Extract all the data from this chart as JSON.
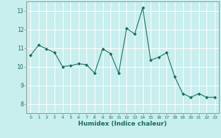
{
  "x": [
    0,
    1,
    2,
    3,
    4,
    5,
    6,
    7,
    8,
    9,
    10,
    11,
    12,
    13,
    14,
    15,
    16,
    17,
    18,
    19,
    20,
    21,
    22,
    23
  ],
  "y": [
    10.6,
    11.15,
    10.95,
    10.75,
    10.0,
    10.05,
    10.15,
    10.1,
    9.65,
    10.95,
    10.7,
    9.65,
    12.05,
    11.75,
    13.15,
    10.35,
    10.5,
    10.75,
    9.45,
    8.55,
    8.35,
    8.55,
    8.35,
    8.35
  ],
  "line_color": "#1a6b5a",
  "marker": "D",
  "marker_size": 2,
  "bg_color": "#c8eeee",
  "grid_color": "#ffffff",
  "xlabel": "Humidex (Indice chaleur)",
  "ylim": [
    7.5,
    13.5
  ],
  "xlim": [
    -0.5,
    23.5
  ],
  "yticks": [
    8,
    9,
    10,
    11,
    12,
    13
  ],
  "xticks": [
    0,
    1,
    2,
    3,
    4,
    5,
    6,
    7,
    8,
    9,
    10,
    11,
    12,
    13,
    14,
    15,
    16,
    17,
    18,
    19,
    20,
    21,
    22,
    23
  ]
}
